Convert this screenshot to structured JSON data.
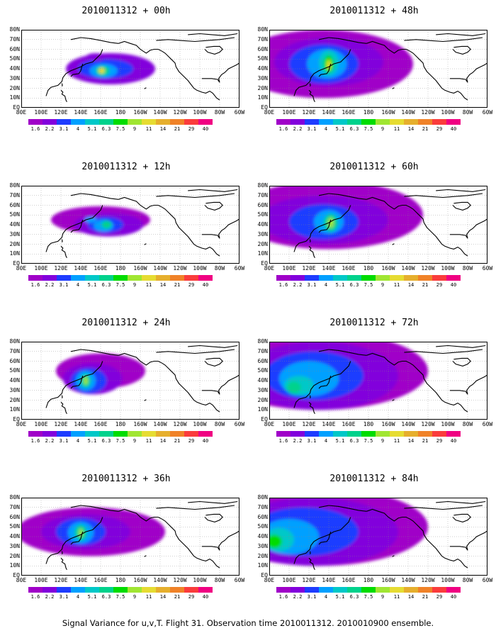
{
  "chart_data": {
    "type": "heatmap",
    "footer": "Signal Variance for u,v,T. Flight 31. Observation time 2010011312. 2010010900 ensemble.",
    "lat_labels": [
      "80N",
      "70N",
      "60N",
      "50N",
      "40N",
      "30N",
      "20N",
      "10N",
      "EQ"
    ],
    "lon_labels": [
      "80E",
      "100E",
      "120E",
      "140E",
      "160E",
      "180",
      "160W",
      "140W",
      "120W",
      "100W",
      "80W",
      "60W"
    ],
    "colorbar": {
      "levels": [
        "1.6",
        "2.2",
        "3.1",
        "4",
        "5.1",
        "6.3",
        "7.5",
        "9",
        "11",
        "14",
        "21",
        "29",
        "40"
      ],
      "colors": [
        "#a000c8",
        "#8200dc",
        "#1e3cff",
        "#00a0ff",
        "#00c8c8",
        "#00d28c",
        "#00dc00",
        "#a0e632",
        "#e6dc32",
        "#e6af2d",
        "#f08228",
        "#fa3c3c",
        "#f00082"
      ]
    },
    "panels": [
      {
        "title": "2010011312 + 00h",
        "col": 0,
        "row": 0,
        "blobs": [
          [
            170,
            40,
            45,
            16,
            1
          ],
          [
            165,
            40,
            28,
            10,
            2
          ],
          [
            163,
            38,
            14,
            7,
            3
          ],
          [
            162,
            38,
            7,
            5,
            5
          ],
          [
            161,
            38,
            3,
            3,
            8
          ],
          [
            155,
            52,
            10,
            4,
            1
          ]
        ]
      },
      {
        "title": "2010011312 + 48h",
        "col": 1,
        "row": 0,
        "blobs": [
          [
            135,
            45,
            90,
            35,
            0
          ],
          [
            140,
            47,
            55,
            25,
            1
          ],
          [
            135,
            45,
            35,
            20,
            2
          ],
          [
            138,
            45,
            20,
            15,
            3
          ],
          [
            140,
            46,
            10,
            13,
            4
          ],
          [
            140,
            45,
            5,
            9,
            6
          ],
          [
            140,
            44,
            2,
            5,
            8
          ]
        ]
      },
      {
        "title": "2010011312 + 12h",
        "col": 0,
        "row": 1,
        "blobs": [
          [
            160,
            45,
            50,
            14,
            0
          ],
          [
            168,
            40,
            35,
            12,
            1
          ],
          [
            165,
            40,
            18,
            8,
            2
          ],
          [
            163,
            39,
            10,
            6,
            3
          ],
          [
            166,
            40,
            5,
            4,
            5
          ],
          [
            150,
            45,
            6,
            3,
            3
          ]
        ]
      },
      {
        "title": "2010011312 + 60h",
        "col": 1,
        "row": 1,
        "blobs": [
          [
            140,
            50,
            95,
            35,
            0
          ],
          [
            135,
            45,
            65,
            25,
            1
          ],
          [
            135,
            43,
            35,
            18,
            2
          ],
          [
            140,
            43,
            15,
            12,
            3
          ],
          [
            142,
            42,
            7,
            9,
            5
          ],
          [
            142,
            42,
            3,
            5,
            7
          ]
        ]
      },
      {
        "title": "2010011312 + 24h",
        "col": 0,
        "row": 2,
        "blobs": [
          [
            160,
            50,
            45,
            18,
            0
          ],
          [
            152,
            42,
            30,
            16,
            1
          ],
          [
            148,
            40,
            18,
            13,
            2
          ],
          [
            145,
            40,
            10,
            10,
            3
          ],
          [
            145,
            40,
            5,
            7,
            5
          ],
          [
            145,
            40,
            2,
            4,
            7
          ]
        ]
      },
      {
        "title": "2010011312 + 36h",
        "col": 0,
        "row": 3,
        "blobs": [
          [
            150,
            45,
            75,
            25,
            0
          ],
          [
            145,
            45,
            45,
            18,
            1
          ],
          [
            140,
            45,
            25,
            14,
            2
          ],
          [
            140,
            44,
            13,
            11,
            3
          ],
          [
            140,
            44,
            6,
            8,
            5
          ],
          [
            140,
            44,
            2,
            4,
            7
          ]
        ]
      },
      {
        "title": "2010011312 + 72h",
        "col": 1,
        "row": 2,
        "blobs": [
          [
            130,
            50,
            110,
            40,
            0
          ],
          [
            130,
            45,
            80,
            35,
            1
          ],
          [
            125,
            45,
            50,
            25,
            2
          ],
          [
            120,
            42,
            30,
            18,
            3
          ],
          [
            110,
            35,
            15,
            10,
            4
          ],
          [
            105,
            33,
            7,
            6,
            5
          ]
        ]
      },
      {
        "title": "2010011312 + 84h",
        "col": 1,
        "row": 3,
        "blobs": [
          [
            130,
            50,
            110,
            40,
            0
          ],
          [
            125,
            45,
            85,
            35,
            1
          ],
          [
            115,
            45,
            55,
            25,
            2
          ],
          [
            100,
            40,
            30,
            18,
            3
          ],
          [
            90,
            37,
            15,
            12,
            4
          ],
          [
            85,
            35,
            8,
            7,
            6
          ]
        ]
      }
    ]
  }
}
